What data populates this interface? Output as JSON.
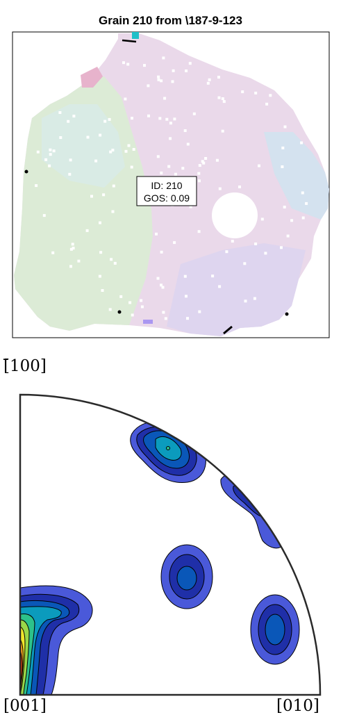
{
  "grain_map": {
    "title": "Grain 210 from \\187-9-123",
    "label_lines": [
      "ID: 210",
      "GOS: 0.09"
    ]
  },
  "pole_figure": {
    "labels": {
      "top": "[̄100]",
      "bottom_left": "[001]",
      "bottom_right": "[010]"
    }
  },
  "chart_data": [
    {
      "type": "heatmap",
      "title": "Grain 210 from \\187-9-123",
      "grain_id": 210,
      "gos": 0.09,
      "annotation": [
        "ID: 210",
        "GOS: 0.09"
      ]
    },
    {
      "type": "heatmap",
      "title": "",
      "projection": "inverse pole figure, cubic standard triangle quadrant",
      "corner_labels": [
        "[̄100]",
        "[001]",
        "[010]"
      ],
      "colors": {
        "level1": "#4a59d9",
        "level2": "#1f2fa8",
        "level3": "#0a57b8",
        "level4": "#0b9bbd",
        "level5": "#2dc28a",
        "level6": "#9ad848",
        "level7": "#f0e62a",
        "level8": "#f4a21e",
        "level9": "#ee4a14"
      }
    }
  ]
}
